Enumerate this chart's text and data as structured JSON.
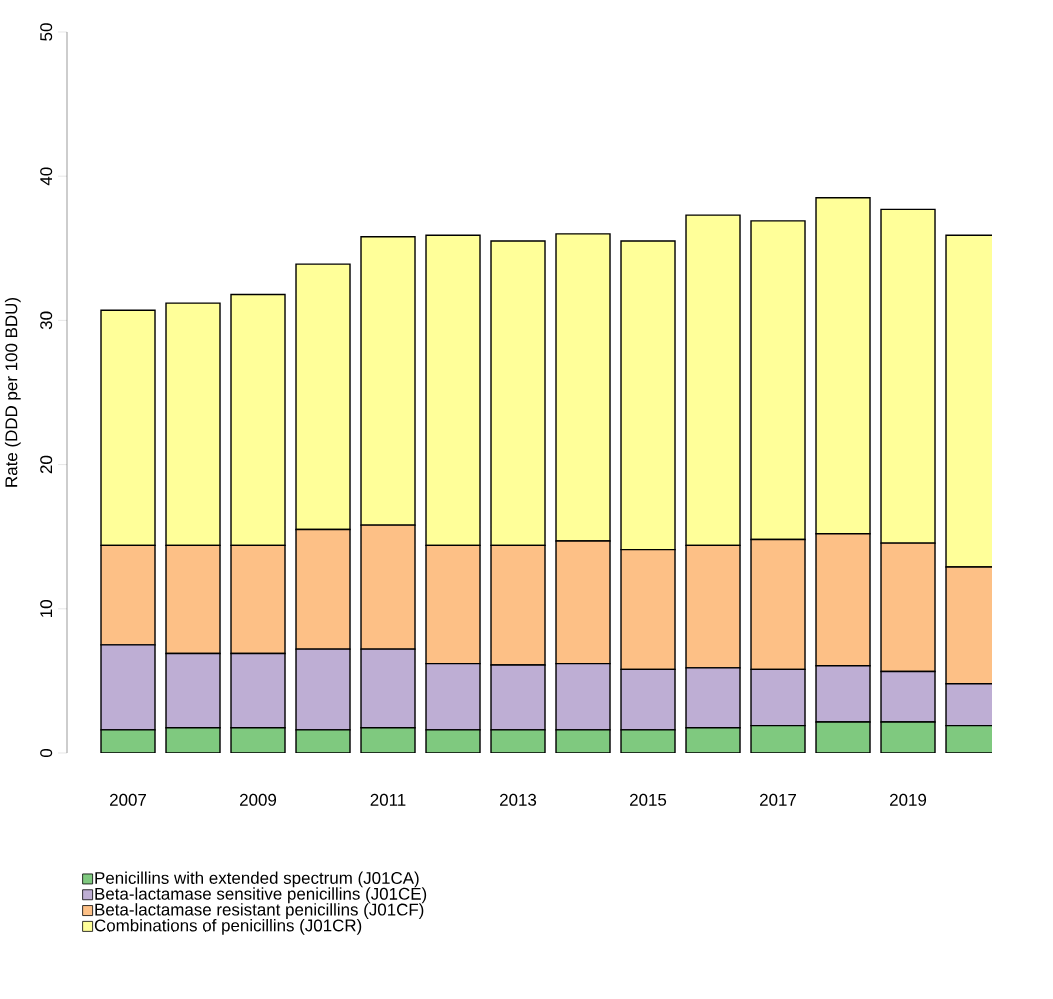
{
  "chart_data": {
    "type": "bar",
    "stacked": true,
    "ylabel": "Rate (DDD per 100 BDU)",
    "categories": [
      "2007",
      null,
      "2009",
      null,
      "2011",
      null,
      "2013",
      null,
      "2015",
      null,
      "2017",
      null,
      "2019",
      null
    ],
    "series": [
      {
        "name": "Penicillins with extended spectrum (J01CA)",
        "color": "#7fc97f",
        "values": [
          1.6,
          1.75,
          1.75,
          1.6,
          1.75,
          1.6,
          1.6,
          1.6,
          1.6,
          1.75,
          1.9,
          2.15,
          2.15,
          1.9
        ]
      },
      {
        "name": "Beta-lactamase sensitive penicillins (J01CE)",
        "color": "#beaed4",
        "values": [
          5.9,
          5.15,
          5.15,
          5.6,
          5.45,
          4.6,
          4.5,
          4.6,
          4.2,
          4.15,
          3.9,
          3.9,
          3.5,
          2.9
        ]
      },
      {
        "name": "Beta-lactamase resistant penicillins (J01CF)",
        "color": "#fdc086",
        "values": [
          6.9,
          7.5,
          7.5,
          8.3,
          8.6,
          8.2,
          8.3,
          8.5,
          8.3,
          8.5,
          9.0,
          9.15,
          8.9,
          8.1
        ]
      },
      {
        "name": "Combinations of penicillins (J01CR)",
        "color": "#ffff99",
        "values": [
          16.3,
          16.8,
          17.4,
          18.4,
          20.0,
          21.5,
          21.1,
          21.3,
          21.4,
          22.9,
          22.1,
          23.3,
          23.15,
          23.0
        ]
      }
    ],
    "ylim": [
      0,
      50
    ],
    "yticks": [
      0,
      10,
      20,
      30,
      40,
      50
    ],
    "legend": "bottom"
  }
}
